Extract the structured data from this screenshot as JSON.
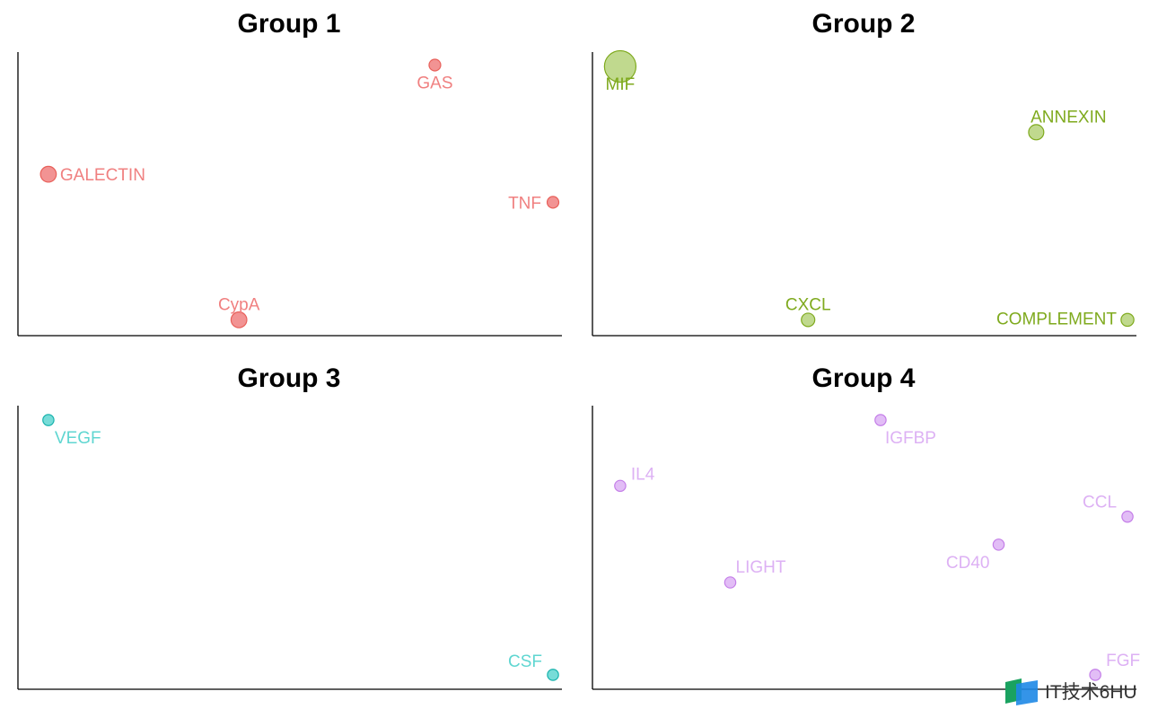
{
  "chart_data": [
    {
      "type": "scatter",
      "title": "Group 1",
      "color": "#F08080",
      "stroke": "#E8605A",
      "xlim": [
        0,
        1
      ],
      "ylim": [
        0,
        1
      ],
      "points": [
        {
          "label": "GAS",
          "x": 0.77,
          "y": 0.96,
          "size": 1
        },
        {
          "label": "GALECTIN",
          "x": 0.05,
          "y": 0.57,
          "size": 1.35
        },
        {
          "label": "TNF",
          "x": 0.99,
          "y": 0.47,
          "size": 1
        },
        {
          "label": "CypA",
          "x": 0.405,
          "y": 0.05,
          "size": 1.35
        }
      ]
    },
    {
      "type": "scatter",
      "title": "Group 2",
      "color": "#B5D27A",
      "stroke": "#7FAA1E",
      "xlim": [
        0,
        1
      ],
      "ylim": [
        0,
        1
      ],
      "points": [
        {
          "label": "MIF",
          "x": 0.045,
          "y": 0.955,
          "size": 2.7
        },
        {
          "label": "ANNEXIN",
          "x": 0.82,
          "y": 0.72,
          "size": 1.3
        },
        {
          "label": "CXCL",
          "x": 0.395,
          "y": 0.05,
          "size": 1.15
        },
        {
          "label": "COMPLEMENT",
          "x": 0.99,
          "y": 0.05,
          "size": 1.1
        }
      ]
    },
    {
      "type": "scatter",
      "title": "Group 3",
      "color": "#5FD6D1",
      "stroke": "#1AB3AD",
      "xlim": [
        0,
        1
      ],
      "ylim": [
        0,
        1
      ],
      "points": [
        {
          "label": "VEGF",
          "x": 0.05,
          "y": 0.955,
          "size": 0.95
        },
        {
          "label": "CSF",
          "x": 0.99,
          "y": 0.045,
          "size": 0.95
        }
      ]
    },
    {
      "type": "scatter",
      "title": "Group 4",
      "color": "#DDB1F4",
      "stroke": "#C47EE8",
      "xlim": [
        0,
        1
      ],
      "ylim": [
        0,
        1
      ],
      "points": [
        {
          "label": "IGFBP",
          "x": 0.53,
          "y": 0.955,
          "size": 0.95
        },
        {
          "label": "IL4",
          "x": 0.045,
          "y": 0.72,
          "size": 0.95
        },
        {
          "label": "CCL",
          "x": 0.99,
          "y": 0.61,
          "size": 0.95
        },
        {
          "label": "CD40",
          "x": 0.75,
          "y": 0.51,
          "size": 0.95
        },
        {
          "label": "LIGHT",
          "x": 0.25,
          "y": 0.375,
          "size": 0.95
        },
        {
          "label": "FGF",
          "x": 0.93,
          "y": 0.045,
          "size": 0.95
        }
      ]
    }
  ],
  "watermark": {
    "text": "IT技术6HU",
    "logo_colors": [
      "#1AA260",
      "#1E88E5"
    ]
  }
}
